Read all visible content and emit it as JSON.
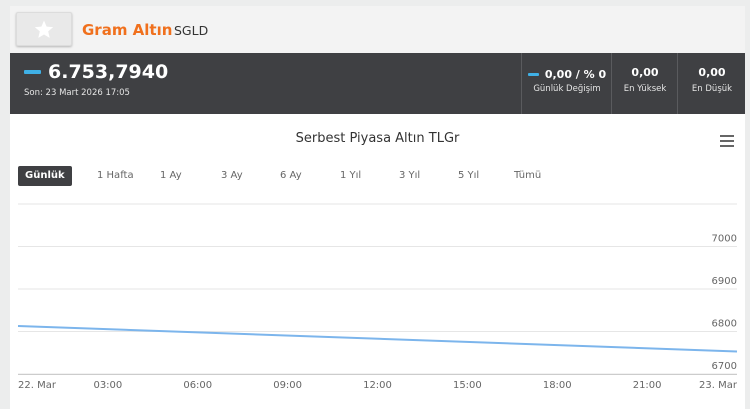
{
  "asset": {
    "name": "Gram Altın",
    "code": "SGLD"
  },
  "price": {
    "value": "6.753,7940",
    "time": "Son: 23 Mart 2026 17:05"
  },
  "stats": {
    "change_value": "0,00 / % 0",
    "change_label": "Günlük Değişim",
    "high_value": "0,00",
    "high_label": "En Yüksek",
    "low_value": "0,00",
    "low_label": "En Düşük"
  },
  "chart": {
    "title": "Serbest Piyasa Altın TLGr",
    "ranges": [
      "Günlük",
      "1 Hafta",
      "1 Ay",
      "3 Ay",
      "6 Ay",
      "1 Yıl",
      "3 Yıl",
      "5 Yıl",
      "Tümü"
    ],
    "active_range": "Günlük"
  },
  "colors": {
    "accent": "#f0701d",
    "dash": "#3fb0e6",
    "dark_bar": "#3f4043",
    "line": "#7cb5ec"
  },
  "chart_data": {
    "type": "line",
    "title": "Serbest Piyasa Altın TLGr",
    "x": [
      "22. Mar 00:00",
      "23. Mar 00:00"
    ],
    "x_ticks": [
      "22. Mar",
      "03:00",
      "06:00",
      "09:00",
      "12:00",
      "15:00",
      "18:00",
      "21:00",
      "23. Mar"
    ],
    "y_ticks": [
      6700,
      6800,
      6900,
      7000
    ],
    "ylim": [
      6700,
      7100
    ],
    "series": [
      {
        "values": [
          6813,
          6753
        ]
      }
    ],
    "grid": true,
    "legend": "none"
  }
}
